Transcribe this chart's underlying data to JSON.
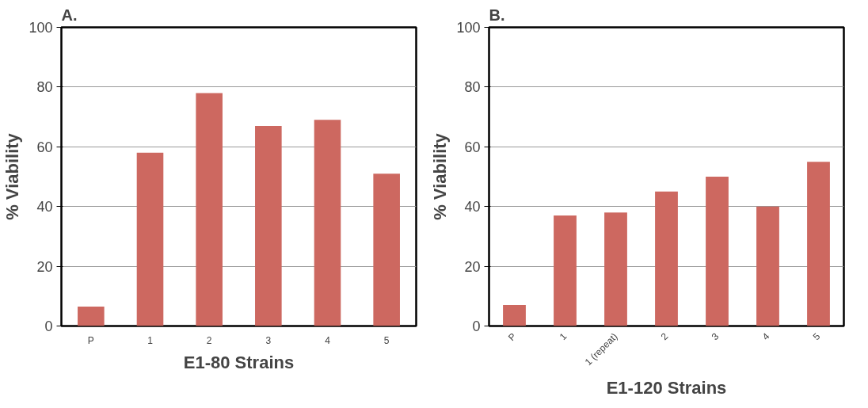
{
  "chart_data": [
    {
      "type": "bar",
      "title": "A.",
      "xlabel": "E1-80 Strains",
      "ylabel": "% Viability",
      "categories": [
        "P",
        "1",
        "2",
        "3",
        "4",
        "5"
      ],
      "values": [
        6.5,
        58,
        78,
        67,
        69,
        51
      ],
      "color": "#cd6860",
      "ylim": [
        0,
        100
      ],
      "yticks": [
        0,
        20,
        40,
        60,
        80,
        100
      ],
      "grid": "y"
    },
    {
      "type": "bar",
      "title": "B.",
      "xlabel": "E1-120 Strains",
      "ylabel": "% Viability",
      "categories": [
        "P",
        "1",
        "1 (repeat)",
        "2",
        "3",
        "4",
        "5"
      ],
      "values": [
        7,
        37,
        38,
        45,
        50,
        40,
        55
      ],
      "color": "#cd6860",
      "ylim": [
        0,
        100
      ],
      "yticks": [
        0,
        20,
        40,
        60,
        80,
        100
      ],
      "grid": "y"
    }
  ]
}
